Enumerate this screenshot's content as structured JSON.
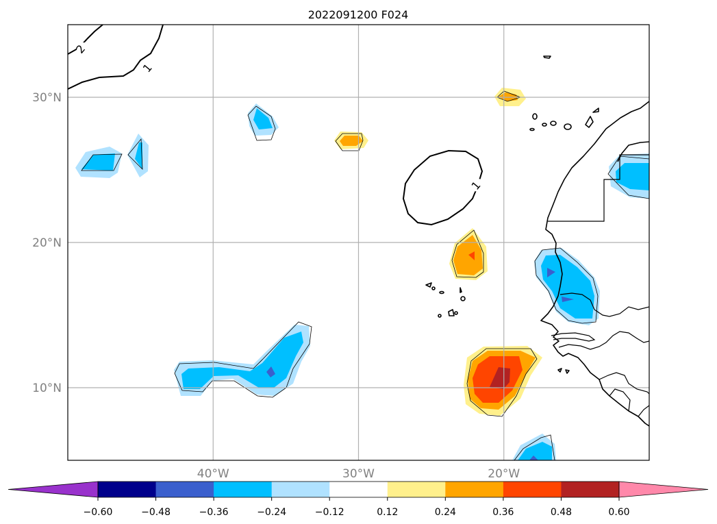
{
  "colors": {
    "below_min": "#9932cc",
    "bins": [
      "#00008b",
      "#3a5fcd",
      "#00bfff",
      "#b0e2ff",
      "#ffffff",
      "#fff08c",
      "#ffa500",
      "#ff4500",
      "#b22222"
    ],
    "above_max": "#ff88aa"
  },
  "chart_data": {
    "type": "heatmap",
    "title": "2022091200 F024",
    "projection": "plate-carree",
    "lon_range": [
      -50,
      -10
    ],
    "lat_range": [
      5,
      35
    ],
    "gridlines": true,
    "lat_ticks": [
      {
        "lat": 30,
        "label": "30°N"
      },
      {
        "lat": 20,
        "label": "20°N"
      },
      {
        "lat": 10,
        "label": "10°N"
      }
    ],
    "lon_ticks": [
      {
        "lon": -40,
        "label": "40°W"
      },
      {
        "lon": -30,
        "label": "30°W"
      },
      {
        "lon": -20,
        "label": "20°W"
      }
    ],
    "colorbar": {
      "orientation": "horizontal",
      "levels": [
        -0.6,
        -0.48,
        -0.36,
        -0.24,
        -0.12,
        0.12,
        0.24,
        0.36,
        0.48,
        0.6
      ],
      "tick_labels": [
        "−0.60",
        "−0.48",
        "−0.36",
        "−0.24",
        "−0.12",
        "0.12",
        "0.24",
        "0.36",
        "0.48",
        "0.60"
      ],
      "extend": "both"
    },
    "contour_labels": [
      {
        "text": "2",
        "lon": -49.1,
        "lat": 33.3
      },
      {
        "text": "1",
        "lon": -44.5,
        "lat": 32.0
      },
      {
        "text": "1",
        "lon": -21.9,
        "lat": 23.9
      }
    ]
  }
}
